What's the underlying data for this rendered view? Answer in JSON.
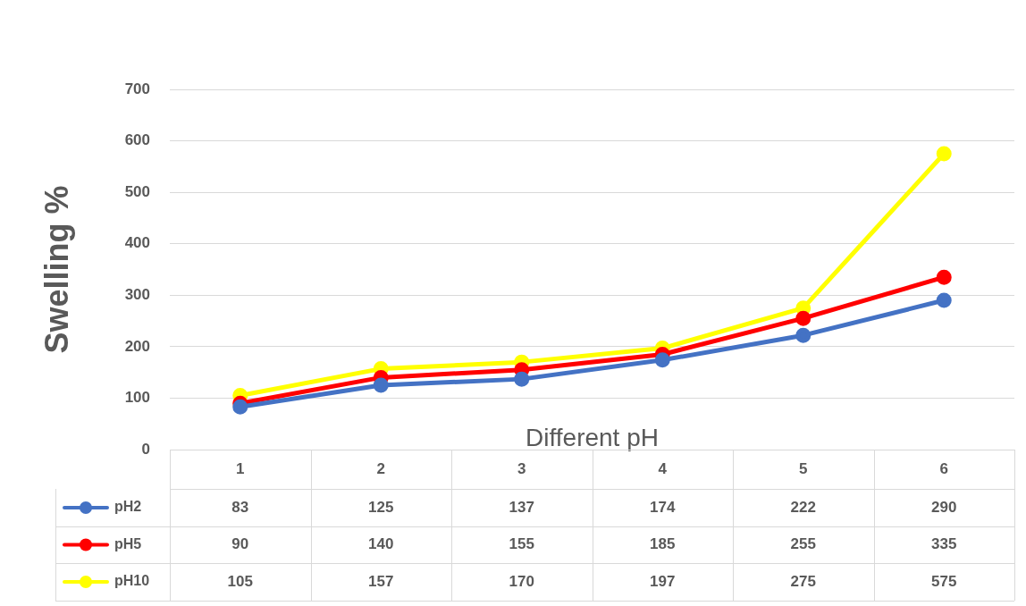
{
  "chart_data": {
    "type": "line",
    "xlabel": "Different pH",
    "ylabel": "Swelling %",
    "categories": [
      "1",
      "2",
      "3",
      "4",
      "5",
      "6"
    ],
    "series": [
      {
        "name": "pH2",
        "color": "#4472c4",
        "values": [
          83,
          125,
          137,
          174,
          222,
          290
        ]
      },
      {
        "name": "pH5",
        "color": "#ff0000",
        "values": [
          90,
          140,
          155,
          185,
          255,
          335
        ]
      },
      {
        "name": "pH10",
        "color": "#ffff00",
        "values": [
          105,
          157,
          170,
          197,
          275,
          575
        ]
      }
    ],
    "ylim": [
      0,
      700
    ],
    "yticks": [
      0,
      100,
      200,
      300,
      400,
      500,
      600,
      700
    ],
    "grid": "y",
    "legend": "bottom",
    "marker": "circle",
    "line_style": "solid",
    "data_labels": true
  }
}
